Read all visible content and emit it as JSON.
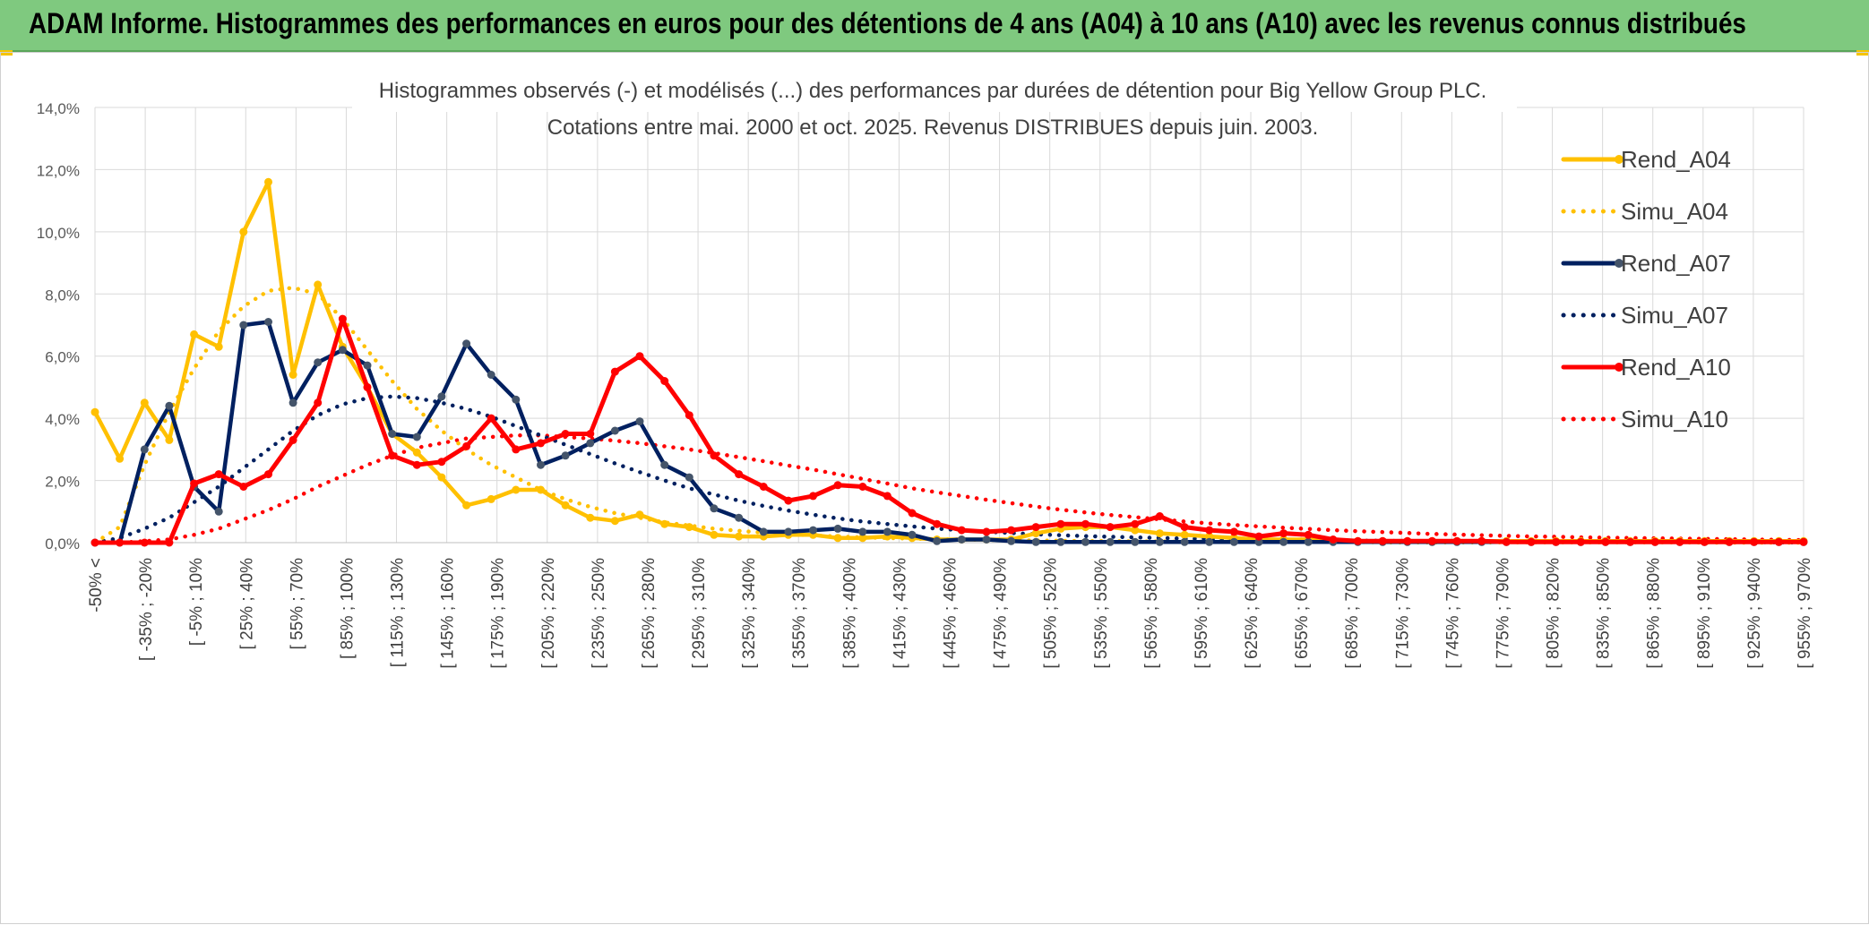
{
  "banner": {
    "title": "ADAM Informe. Histogrammes des performances en euros pour des détentions de 4 ans (A04) à 10 ans (A10) avec les revenus connus distribués"
  },
  "colors": {
    "banner_bg": "#7fc97f",
    "rend_a04": "#FFC000",
    "rend_a07": "#002060",
    "rend_a10": "#FF0000",
    "marker_a07": "#44546A",
    "grid": "#d9d9d9"
  },
  "chart_data": {
    "type": "line",
    "title_line1": "Histogrammes observés (-) et modélisés (...) des performances par durées de détention pour Big Yellow Group PLC.",
    "title_line2": "Cotations entre mai. 2000 et oct. 2025. Revenus DISTRIBUES depuis juin. 2003.",
    "ylim": [
      0,
      14
    ],
    "yticks": [
      "0,0%",
      "2,0%",
      "4,0%",
      "6,0%",
      "8,0%",
      "10,0%",
      "12,0%",
      "14,0%"
    ],
    "tick_labels": [
      "-50% <",
      "[ -35% ; -20%",
      "[ -5% ; 10%",
      "[ 25% ; 40%",
      "[ 55% ; 70%",
      "[ 85% ; 100%",
      "[ 115% ; 130%",
      "[ 145% ; 160%",
      "[ 175% ; 190%",
      "[ 205% ; 220%",
      "[ 235% ; 250%",
      "[ 265% ; 280%",
      "[ 295% ; 310%",
      "[ 325% ; 340%",
      "[ 355% ; 370%",
      "[ 385% ; 400%",
      "[ 415% ; 430%",
      "[ 445% ; 460%",
      "[ 475% ; 490%",
      "[ 505% ; 520%",
      "[ 535% ; 550%",
      "[ 565% ; 580%",
      "[ 595% ; 610%",
      "[ 625% ; 640%",
      "[ 655% ; 670%",
      "[ 685% ; 700%",
      "[ 715% ; 730%",
      "[ 745% ; 760%",
      "[ 775% ; 790%",
      "[ 805% ; 820%",
      "[ 835% ; 850%",
      "[ 865% ; 880%",
      "[ 895% ; 910%",
      "[ 925% ; 940%",
      "[ 955% ; 970%"
    ],
    "series": [
      {
        "name": "Rend_A04",
        "style": "solid",
        "values": [
          4.2,
          2.7,
          4.5,
          3.3,
          6.7,
          6.3,
          10.0,
          11.6,
          5.4,
          8.3,
          6.3,
          5.0,
          3.5,
          2.9,
          2.1,
          1.2,
          1.4,
          1.7,
          1.7,
          1.2,
          0.8,
          0.7,
          0.9,
          0.6,
          0.5,
          0.25,
          0.2,
          0.2,
          0.25,
          0.25,
          0.15,
          0.15,
          0.2,
          0.15,
          0.1,
          0.1,
          0.1,
          0.1,
          0.3,
          0.45,
          0.5,
          0.5,
          0.4,
          0.3,
          0.25,
          0.2,
          0.15,
          0.1,
          0.1,
          0.1,
          0.05,
          0.05,
          0.05,
          0.05,
          0.05,
          0.05,
          0.05,
          0.05,
          0.05,
          0.05,
          0.05,
          0.05,
          0.05,
          0.05,
          0.05,
          0.05,
          0.05,
          0.05,
          0.05,
          0.05
        ]
      },
      {
        "name": "Simu_A04",
        "style": "dotted",
        "values": [
          0.0,
          0.5,
          2.5,
          4.2,
          5.6,
          6.8,
          7.6,
          8.1,
          8.2,
          8.0,
          7.2,
          6.2,
          5.2,
          4.3,
          3.6,
          3.0,
          2.5,
          2.1,
          1.7,
          1.4,
          1.15,
          0.95,
          0.8,
          0.65,
          0.55,
          0.45,
          0.38,
          0.32,
          0.27,
          0.23,
          0.2,
          0.17,
          0.15,
          0.13,
          0.11,
          0.1,
          0.09,
          0.08,
          0.07,
          0.06,
          0.05,
          0.05,
          0.04,
          0.04,
          0.03,
          0.03,
          0.03,
          0.02,
          0.02,
          0.02,
          0.02,
          0.02,
          0.01,
          0.01,
          0.01,
          0.01,
          0.01,
          0.01,
          0.01,
          0.01,
          0.01,
          0.01,
          0.01,
          0.01,
          0.01,
          0.0,
          0.0,
          0.0,
          0.0,
          0.0
        ]
      },
      {
        "name": "Rend_A07",
        "style": "solid",
        "values": [
          0.0,
          0.0,
          3.0,
          4.4,
          1.8,
          1.0,
          7.0,
          7.1,
          4.5,
          5.8,
          6.2,
          5.7,
          3.5,
          3.4,
          4.7,
          6.4,
          5.4,
          4.6,
          2.5,
          2.8,
          3.2,
          3.6,
          3.9,
          2.5,
          2.1,
          1.1,
          0.8,
          0.35,
          0.35,
          0.4,
          0.45,
          0.35,
          0.35,
          0.25,
          0.05,
          0.1,
          0.1,
          0.05,
          0.02,
          0.02,
          0.02,
          0.02,
          0.02,
          0.02,
          0.02,
          0.02,
          0.02,
          0.02,
          0.02,
          0.02,
          0.02,
          0.02,
          0.02,
          0.02,
          0.02,
          0.02,
          0.02,
          0.02,
          0.02,
          0.02,
          0.02,
          0.02,
          0.02,
          0.02,
          0.02,
          0.02,
          0.02,
          0.02,
          0.02,
          0.02
        ]
      },
      {
        "name": "Simu_A07",
        "style": "dotted",
        "values": [
          0.0,
          0.15,
          0.45,
          0.8,
          1.3,
          1.8,
          2.4,
          3.0,
          3.6,
          4.1,
          4.45,
          4.65,
          4.7,
          4.65,
          4.5,
          4.3,
          4.05,
          3.75,
          3.45,
          3.15,
          2.85,
          2.55,
          2.27,
          2.0,
          1.75,
          1.55,
          1.35,
          1.18,
          1.03,
          0.9,
          0.78,
          0.68,
          0.6,
          0.52,
          0.45,
          0.4,
          0.35,
          0.31,
          0.27,
          0.24,
          0.21,
          0.19,
          0.17,
          0.15,
          0.13,
          0.12,
          0.11,
          0.1,
          0.09,
          0.08,
          0.07,
          0.06,
          0.06,
          0.05,
          0.05,
          0.04,
          0.04,
          0.04,
          0.03,
          0.03,
          0.03,
          0.03,
          0.02,
          0.02,
          0.02,
          0.02,
          0.02,
          0.02,
          0.01,
          0.01
        ]
      },
      {
        "name": "Rend_A10",
        "style": "solid",
        "values": [
          0.0,
          0.0,
          0.0,
          0.0,
          1.9,
          2.2,
          1.8,
          2.2,
          3.3,
          4.5,
          7.2,
          5.0,
          2.8,
          2.5,
          2.6,
          3.1,
          4.0,
          3.0,
          3.2,
          3.5,
          3.5,
          5.5,
          6.0,
          5.2,
          4.1,
          2.8,
          2.2,
          1.8,
          1.35,
          1.5,
          1.85,
          1.8,
          1.5,
          0.95,
          0.6,
          0.4,
          0.35,
          0.4,
          0.5,
          0.6,
          0.6,
          0.5,
          0.6,
          0.85,
          0.5,
          0.4,
          0.35,
          0.2,
          0.3,
          0.25,
          0.1,
          0.05,
          0.05,
          0.05,
          0.05,
          0.05,
          0.05,
          0.02,
          0.02,
          0.02,
          0.02,
          0.02,
          0.02,
          0.02,
          0.02,
          0.02,
          0.02,
          0.02,
          0.02,
          0.02
        ]
      },
      {
        "name": "Simu_A10",
        "style": "dotted",
        "values": [
          0.0,
          0.0,
          0.05,
          0.1,
          0.25,
          0.45,
          0.75,
          1.05,
          1.4,
          1.8,
          2.15,
          2.5,
          2.8,
          3.05,
          3.2,
          3.35,
          3.4,
          3.45,
          3.45,
          3.4,
          3.35,
          3.28,
          3.2,
          3.1,
          3.0,
          2.88,
          2.75,
          2.62,
          2.48,
          2.35,
          2.2,
          2.05,
          1.9,
          1.75,
          1.62,
          1.5,
          1.38,
          1.27,
          1.16,
          1.06,
          0.97,
          0.89,
          0.82,
          0.75,
          0.68,
          0.62,
          0.57,
          0.52,
          0.48,
          0.44,
          0.4,
          0.37,
          0.34,
          0.31,
          0.28,
          0.26,
          0.24,
          0.22,
          0.2,
          0.19,
          0.17,
          0.16,
          0.15,
          0.14,
          0.13,
          0.12,
          0.11,
          0.1,
          0.09,
          0.08
        ]
      }
    ]
  }
}
